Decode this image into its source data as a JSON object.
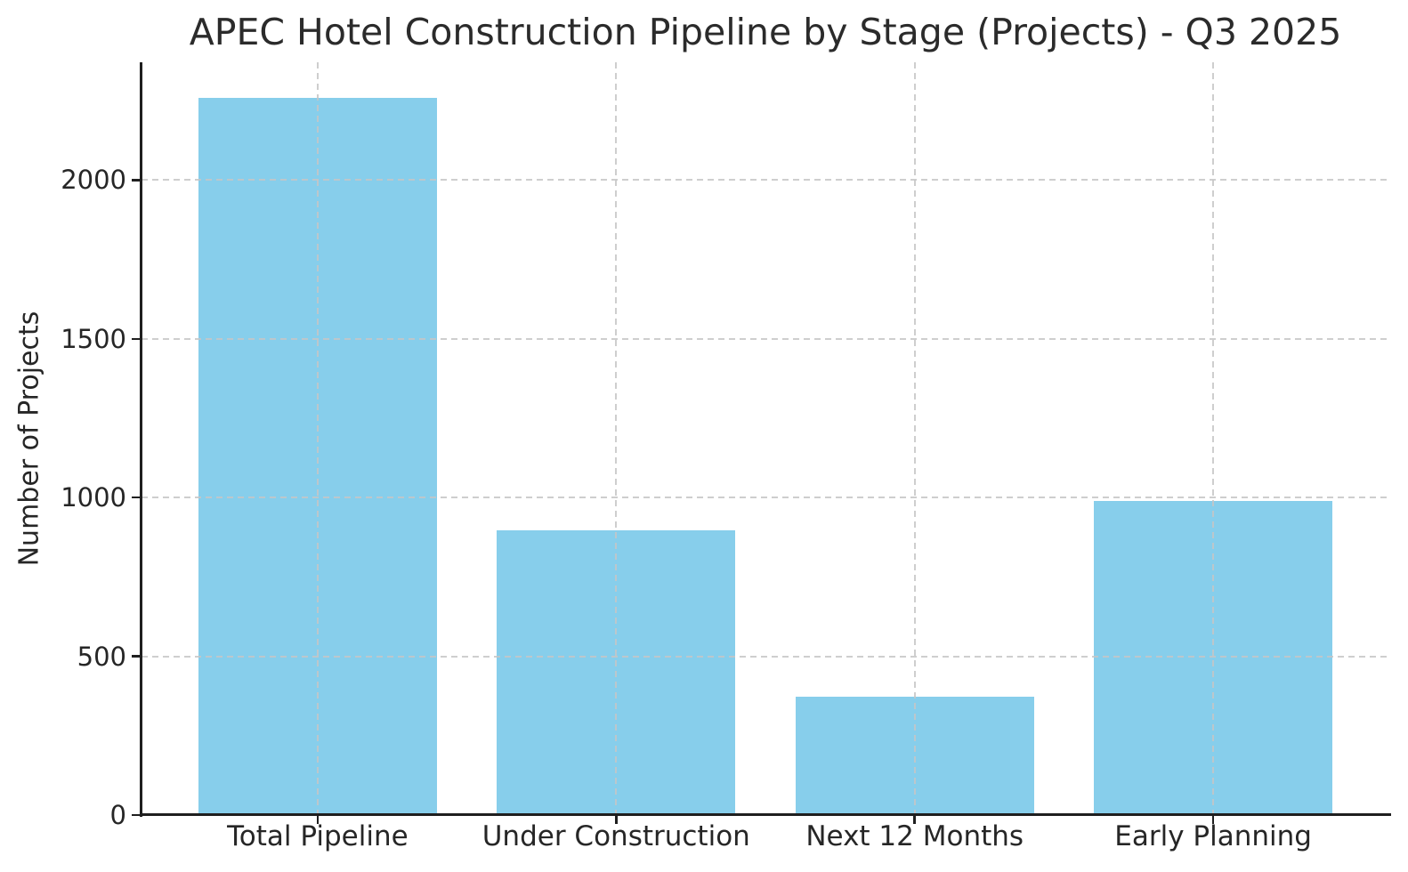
{
  "chart_data": {
    "type": "bar",
    "title": "APEC Hotel Construction Pipeline by Stage (Projects) - Q3 2025",
    "categories": [
      "Total Pipeline",
      "Under Construction",
      "Next 12 Months",
      "Early Planning"
    ],
    "values": [
      2258,
      897,
      373,
      988
    ],
    "xlabel": "",
    "ylabel": "Number of Projects",
    "yticks": [
      0,
      500,
      1000,
      1500,
      2000
    ],
    "ylim": [
      0,
      2371
    ],
    "xlim": [
      -0.59,
      3.59
    ],
    "bar_width": 0.8,
    "grid": "dashed gridlines on both axes, drawn above bars",
    "legend": "none",
    "colors": {
      "bar": "#87CEEB",
      "grid": "#c6c6c6",
      "axis": "#1f1f1f",
      "text": "#262626",
      "background": "#ffffff"
    }
  }
}
